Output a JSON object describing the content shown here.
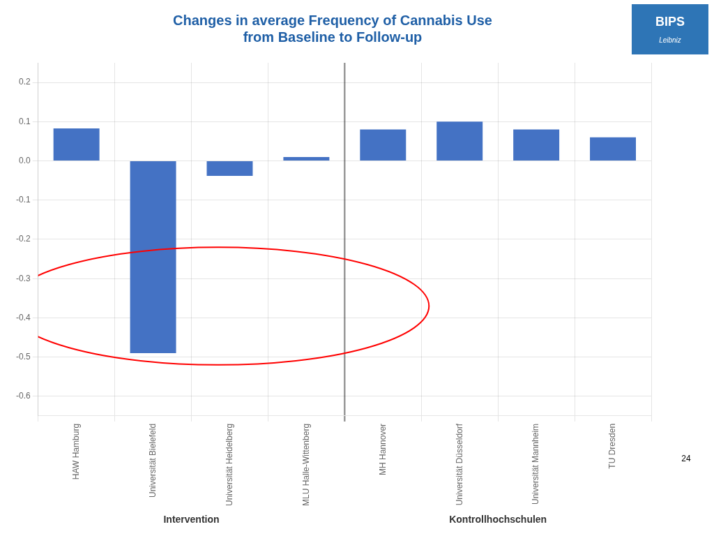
{
  "chart_data": {
    "type": "bar",
    "title": [
      "Changes in average Frequency of Cannabis Use",
      "from Baseline to Follow-up"
    ],
    "categories": [
      "HAW Hamburg",
      "Universität Bielefeld",
      "Universität Heidelberg",
      "MLU Halle-Wittenberg",
      "MH Hannover",
      "Universität Düsseldorf",
      "Universität Mannheim",
      "TU Dresden"
    ],
    "values": [
      0.083,
      -0.49,
      -0.038,
      0.01,
      0.08,
      0.1,
      0.08,
      0.06
    ],
    "color": "#4472C4",
    "ylim": [
      -0.65,
      0.25
    ],
    "yticks": [
      -0.6,
      -0.5,
      -0.4,
      -0.3,
      -0.2,
      -0.1,
      {
        "value": 0,
        "label": "0.0"
      },
      0.1,
      0.2
    ],
    "grid": true,
    "group_labels": [
      "Intervention",
      "Kontrollhochschulen"
    ],
    "annotations": [
      {
        "type": "ellipse",
        "x": 1.85,
        "y": -0.37,
        "width": 5.5,
        "height": 0.3,
        "color": "red"
      },
      {
        "type": "page_number",
        "text": "24"
      },
      {
        "type": "logo",
        "text": [
          "BIPS",
          "Leibniz"
        ]
      }
    ]
  }
}
